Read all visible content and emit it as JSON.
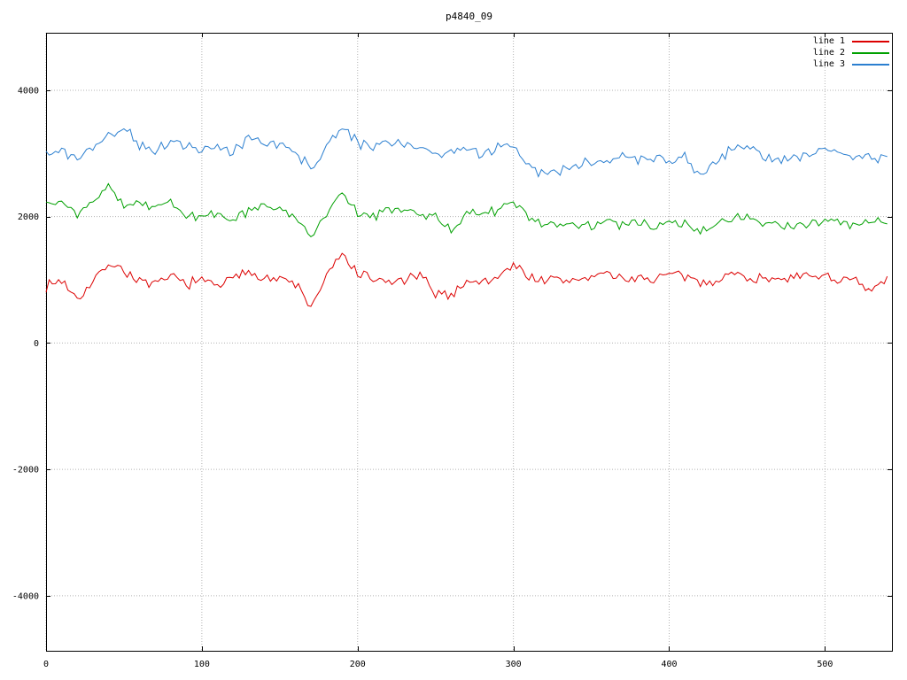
{
  "title": "p4840_09",
  "chart_data": {
    "type": "line",
    "title": "p4840_09",
    "xlabel": "",
    "ylabel": "",
    "xlim": [
      0,
      543
    ],
    "ylim": [
      -4870,
      4910
    ],
    "x_ticks": [
      0,
      100,
      200,
      300,
      400,
      500
    ],
    "y_ticks": [
      -4000,
      -2000,
      0,
      2000,
      4000
    ],
    "grid": true,
    "grid_style": "dotted",
    "legend_position": "top-right-inside",
    "background": "#ffffff",
    "border_color": "#000000",
    "grid_color": "#b3b3b3",
    "noise_seed": 7,
    "step": 2,
    "anchor_x": [
      0,
      10,
      20,
      30,
      40,
      50,
      60,
      70,
      80,
      90,
      100,
      110,
      120,
      130,
      140,
      150,
      160,
      170,
      180,
      190,
      200,
      210,
      220,
      230,
      240,
      250,
      260,
      270,
      280,
      290,
      300,
      310,
      320,
      330,
      340,
      350,
      360,
      370,
      380,
      390,
      400,
      410,
      420,
      430,
      440,
      450,
      460,
      470,
      480,
      490,
      500,
      510,
      520,
      530,
      540
    ],
    "series": [
      {
        "name": "line 1",
        "color": "#dc0000",
        "noise": 70,
        "anchors_y": [
          900,
          1000,
          720,
          950,
          1280,
          1150,
          980,
          900,
          1050,
          950,
          980,
          920,
          1000,
          1150,
          1050,
          1000,
          950,
          560,
          1050,
          1400,
          1100,
          1000,
          950,
          1000,
          1050,
          800,
          750,
          1000,
          950,
          1050,
          1250,
          1050,
          1000,
          980,
          1000,
          1050,
          1100,
          1000,
          1050,
          1000,
          1080,
          1050,
          950,
          1000,
          1100,
          1050,
          1000,
          1080,
          1000,
          1050,
          1080,
          1000,
          950,
          800,
          1020
        ]
      },
      {
        "name": "line 2",
        "color": "#00a000",
        "noise": 60,
        "anchors_y": [
          2250,
          2200,
          2050,
          2200,
          2480,
          2150,
          2200,
          2150,
          2200,
          2050,
          2000,
          2050,
          1950,
          2100,
          2200,
          2100,
          2000,
          1680,
          2050,
          2400,
          2050,
          2000,
          2100,
          2120,
          2050,
          2000,
          1800,
          2050,
          2050,
          2100,
          2250,
          1950,
          1900,
          1880,
          1900,
          1850,
          1900,
          1880,
          1900,
          1850,
          1900,
          1880,
          1750,
          1900,
          1950,
          2000,
          1900,
          1850,
          1880,
          1900,
          1950,
          1900,
          1850,
          1950,
          1900
        ]
      },
      {
        "name": "line 3",
        "color": "#2b7fd0",
        "noise": 70,
        "anchors_y": [
          3000,
          3050,
          2950,
          3100,
          3300,
          3420,
          3150,
          3050,
          3200,
          3100,
          3050,
          3100,
          3000,
          3250,
          3200,
          3150,
          3000,
          2800,
          3100,
          3450,
          3150,
          3100,
          3200,
          3150,
          3100,
          2950,
          3000,
          3050,
          3000,
          3100,
          3150,
          2800,
          2650,
          2750,
          2800,
          2900,
          2850,
          2950,
          2900,
          2950,
          2900,
          2950,
          2600,
          2900,
          3050,
          3150,
          2950,
          2900,
          2950,
          3000,
          3050,
          2950,
          2950,
          2900,
          2950
        ]
      }
    ]
  }
}
